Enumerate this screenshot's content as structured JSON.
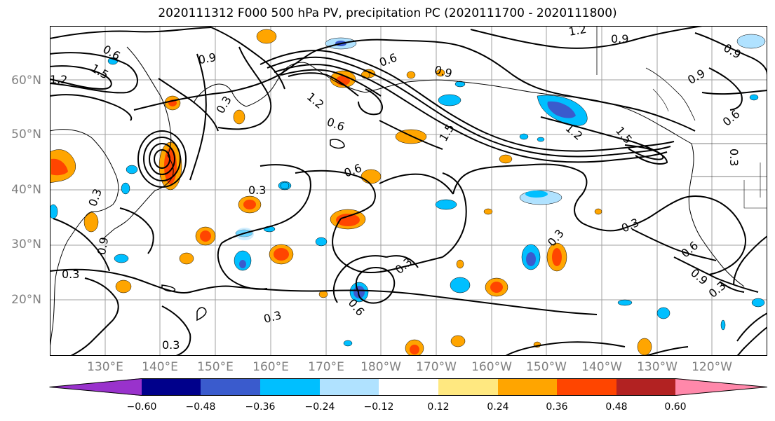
{
  "title": "2020111312 F000 500 hPa PV, precipitation PC (2020111700 - 2020111800)",
  "lat_labels": [
    "60°N",
    "50°N",
    "40°N",
    "30°N",
    "20°N"
  ],
  "lon_labels": [
    "130°E",
    "140°E",
    "150°E",
    "160°E",
    "170°E",
    "180°W",
    "170°W",
    "160°W",
    "150°W",
    "140°W",
    "130°W",
    "120°W"
  ],
  "contour_labels": [
    "0.6",
    "1.5",
    "1.2",
    "0.9",
    "0.3",
    "0.6",
    "0.9",
    "1.2",
    "1.5",
    "0.6",
    "0.3",
    "0.6",
    "0.3",
    "0.3",
    "0.3",
    "0.3",
    "0.3",
    "0.6",
    "0.9",
    "0.3",
    "0.3",
    "0.9",
    "0.6",
    "0.9",
    "0.6",
    "0.3",
    "0.3",
    "1.2",
    "0.9",
    "0.9",
    "1.5",
    "1.2"
  ],
  "colorbar": {
    "ticks": [
      "−0.60",
      "−0.48",
      "−0.36",
      "−0.24",
      "−0.12",
      "0.12",
      "0.24",
      "0.36",
      "0.48",
      "0.60"
    ],
    "colors": [
      "#9932cc",
      "#00008b",
      "#3a5bcd",
      "#00bfff",
      "#b0e2ff",
      "#ffffff",
      "#ffe880",
      "#ffa500",
      "#ff4500",
      "#b22222",
      "#ff88aa"
    ]
  },
  "colors": {
    "text": "#000000",
    "axis_label": "#808080",
    "grid": "#a0a0a0",
    "contour": "#000000"
  }
}
